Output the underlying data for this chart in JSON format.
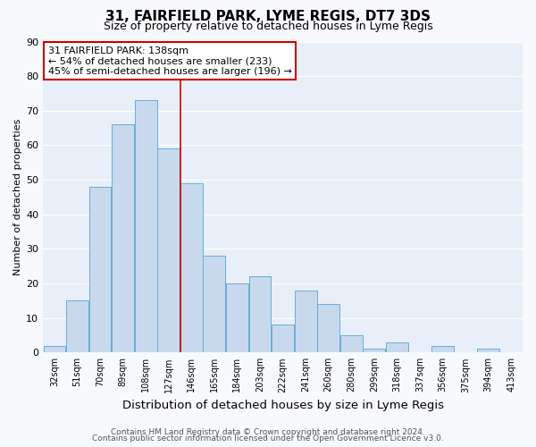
{
  "title1": "31, FAIRFIELD PARK, LYME REGIS, DT7 3DS",
  "title2": "Size of property relative to detached houses in Lyme Regis",
  "xlabel": "Distribution of detached houses by size in Lyme Regis",
  "ylabel": "Number of detached properties",
  "categories": [
    "32sqm",
    "51sqm",
    "70sqm",
    "89sqm",
    "108sqm",
    "127sqm",
    "146sqm",
    "165sqm",
    "184sqm",
    "203sqm",
    "222sqm",
    "241sqm",
    "260sqm",
    "280sqm",
    "299sqm",
    "318sqm",
    "337sqm",
    "356sqm",
    "375sqm",
    "394sqm",
    "413sqm"
  ],
  "values": [
    2,
    15,
    48,
    66,
    73,
    59,
    49,
    28,
    20,
    22,
    8,
    18,
    14,
    5,
    1,
    3,
    0,
    2,
    0,
    1,
    0
  ],
  "bar_color": "#c8d9ed",
  "bar_edgecolor": "#6aadd5",
  "bar_linewidth": 0.7,
  "redline_index": 5.5,
  "redline_color": "#cc0000",
  "ylim": [
    0,
    90
  ],
  "yticks": [
    0,
    10,
    20,
    30,
    40,
    50,
    60,
    70,
    80,
    90
  ],
  "annotation_title": "31 FAIRFIELD PARK: 138sqm",
  "annotation_line1": "← 54% of detached houses are smaller (233)",
  "annotation_line2": "45% of semi-detached houses are larger (196) →",
  "annotation_box_facecolor": "#ffffff",
  "annotation_box_edgecolor": "#cc0000",
  "footer1": "Contains HM Land Registry data © Crown copyright and database right 2024.",
  "footer2": "Contains public sector information licensed under the Open Government Licence v3.0.",
  "fig_bg_color": "#f7f9fc",
  "plot_bg_color": "#e8eff8",
  "grid_color": "#ffffff",
  "title1_fontsize": 11,
  "title2_fontsize": 9,
  "ylabel_fontsize": 8,
  "xlabel_fontsize": 9.5,
  "tick_fontsize": 8,
  "xtick_fontsize": 7,
  "annotation_fontsize": 8,
  "footer_fontsize": 6.5
}
